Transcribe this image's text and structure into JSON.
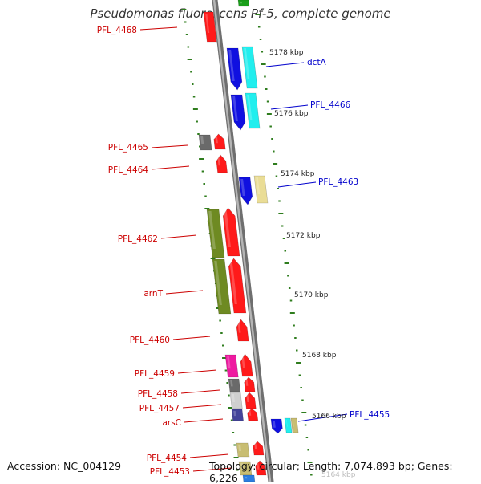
{
  "title": "Pseudomonas fluorescens Pf-5, complete genome",
  "footer": {
    "accession": "Accession: NC_004129",
    "summary": "Topology: circular; Length: 7,074,893 bp; Genes: 6,226"
  },
  "colors": {
    "backbone": "#8c8c8c",
    "tick": "#2f7d1e",
    "label_left": "#cc0000",
    "label_right": "#0000cc",
    "red": "#ff1a1a",
    "blue": "#1010e0",
    "cyan": "#22eeee",
    "olive": "#6e8a22",
    "gray": "#6a6a6a",
    "lightgray": "#cfcfcf",
    "magenta": "#ee1aa0",
    "khaki": "#c8bd72",
    "lightkhaki": "#eadd96",
    "navy": "#44449a"
  },
  "scale_labels": [
    "5178 kbp",
    "5176 kbp",
    "5174 kbp",
    "5172 kbp",
    "5170 kbp",
    "5168 kbp",
    "5166 kbp",
    "5164 kbp"
  ],
  "left_labels": [
    "PFL_4468",
    "PFL_4465",
    "PFL_4464",
    "PFL_4462",
    "arnT",
    "PFL_4460",
    "PFL_4459",
    "PFL_4458",
    "PFL_4457",
    "arsC",
    "PFL_4454",
    "PFL_4453"
  ],
  "right_labels": [
    "dctA",
    "PFL_4466",
    "PFL_4463",
    "PFL_4455"
  ]
}
